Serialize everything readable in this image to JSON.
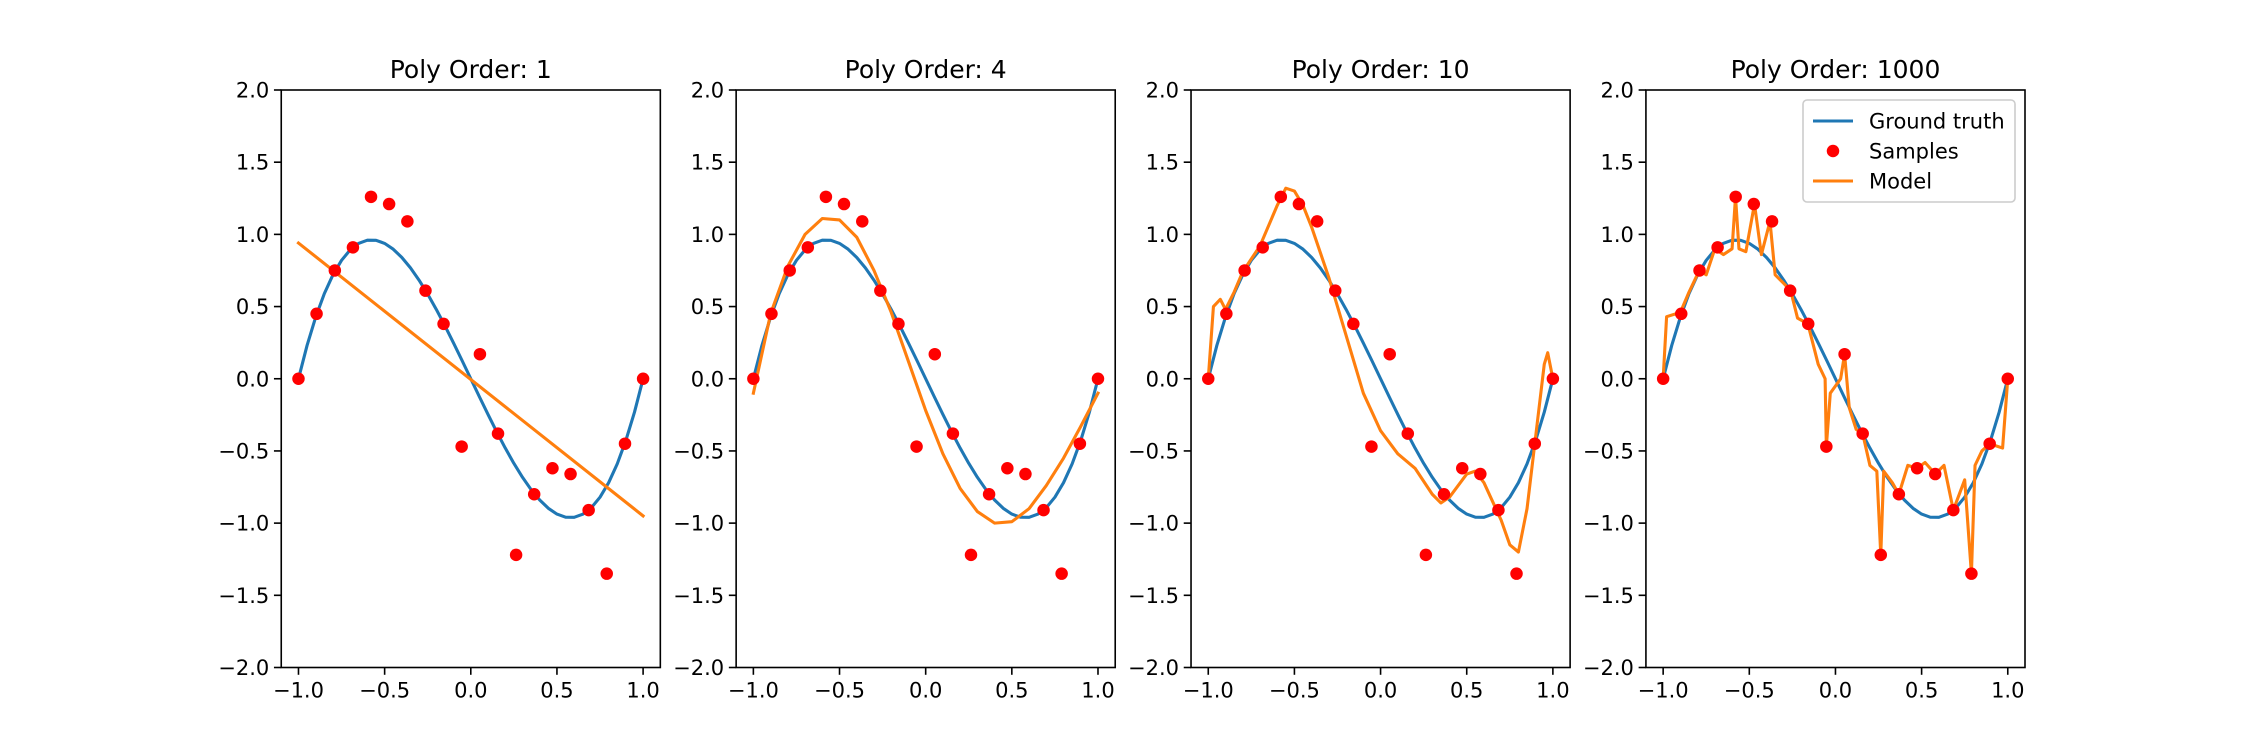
{
  "chart_data": [
    {
      "type": "line",
      "title": "Poly Order: 1",
      "xlim": [
        -1.1,
        1.1
      ],
      "ylim": [
        -2,
        2
      ],
      "xticks": [
        {
          "value": -1,
          "label": "−1.0"
        },
        {
          "value": -0.5,
          "label": "−0.5"
        },
        {
          "value": 0,
          "label": "0.0"
        },
        {
          "value": 0.5,
          "label": "0.5"
        },
        {
          "value": 1,
          "label": "1.0"
        }
      ],
      "yticks": [
        {
          "value": -2,
          "label": "−2.0"
        },
        {
          "value": -1.5,
          "label": "−1.5"
        },
        {
          "value": -1,
          "label": "−1.0"
        },
        {
          "value": -0.5,
          "label": "−0.5"
        },
        {
          "value": 0,
          "label": "0.0"
        },
        {
          "value": 0.5,
          "label": "0.5"
        },
        {
          "value": 1,
          "label": "1.0"
        },
        {
          "value": 1.5,
          "label": "1.5"
        },
        {
          "value": 2,
          "label": "2.0"
        }
      ],
      "series": [
        {
          "name": "Ground truth",
          "type": "line",
          "color": "#1f77b4",
          "x": [
            -1,
            -0.95,
            -0.9,
            -0.85,
            -0.8,
            -0.75,
            -0.7,
            -0.65,
            -0.6,
            -0.55,
            -0.5,
            -0.45,
            -0.4,
            -0.35,
            -0.3,
            -0.25,
            -0.2,
            -0.15,
            -0.1,
            -0.05,
            0,
            0.05,
            0.1,
            0.15,
            0.2,
            0.25,
            0.3,
            0.35,
            0.4,
            0.45,
            0.5,
            0.55,
            0.6,
            0.65,
            0.7,
            0.75,
            0.8,
            0.85,
            0.9,
            0.95,
            1
          ],
          "values": [
            0,
            0.2316,
            0.4275,
            0.5897,
            0.72,
            0.8203,
            0.8925,
            0.9384,
            0.96,
            0.9591,
            0.9375,
            0.8972,
            0.84,
            0.7678,
            0.6825,
            0.5859,
            0.48,
            0.3666,
            0.2475,
            0.1247,
            0,
            -0.1247,
            -0.2475,
            -0.3666,
            -0.48,
            -0.5859,
            -0.6825,
            -0.7678,
            -0.84,
            -0.8972,
            -0.9375,
            -0.9591,
            -0.96,
            -0.9384,
            -0.8925,
            -0.8203,
            -0.72,
            -0.5897,
            -0.4275,
            -0.2316,
            0
          ]
        },
        {
          "name": "Samples",
          "type": "scatter",
          "color": "#ff0000",
          "x": [
            -1,
            -0.895,
            -0.789,
            -0.684,
            -0.579,
            -0.474,
            -0.368,
            -0.263,
            -0.158,
            -0.053,
            0.053,
            0.158,
            0.263,
            0.368,
            0.474,
            0.579,
            0.684,
            0.789,
            0.895,
            1
          ],
          "values": [
            0,
            0.45,
            0.75,
            0.91,
            1.26,
            1.21,
            1.09,
            0.61,
            0.38,
            -0.47,
            0.17,
            -0.38,
            -1.22,
            -0.8,
            -0.62,
            -0.66,
            -0.91,
            -1.35,
            -0.45,
            0
          ]
        },
        {
          "name": "Model",
          "type": "line",
          "color": "#ff7f0e",
          "x": [
            -1,
            1
          ],
          "values": [
            0.94,
            -0.95
          ]
        }
      ]
    },
    {
      "type": "line",
      "title": "Poly Order: 4",
      "xlim": [
        -1.1,
        1.1
      ],
      "ylim": [
        -2,
        2
      ],
      "xticks": [
        {
          "value": -1,
          "label": "−1.0"
        },
        {
          "value": -0.5,
          "label": "−0.5"
        },
        {
          "value": 0,
          "label": "0.0"
        },
        {
          "value": 0.5,
          "label": "0.5"
        },
        {
          "value": 1,
          "label": "1.0"
        }
      ],
      "yticks": [
        {
          "value": -2,
          "label": "−2.0"
        },
        {
          "value": -1.5,
          "label": "−1.5"
        },
        {
          "value": -1,
          "label": "−1.0"
        },
        {
          "value": -0.5,
          "label": "−0.5"
        },
        {
          "value": 0,
          "label": "0.0"
        },
        {
          "value": 0.5,
          "label": "0.5"
        },
        {
          "value": 1,
          "label": "1.0"
        },
        {
          "value": 1.5,
          "label": "1.5"
        },
        {
          "value": 2,
          "label": "2.0"
        }
      ],
      "series": [
        {
          "name": "Ground truth",
          "type": "line",
          "color": "#1f77b4",
          "x": [
            -1,
            -0.95,
            -0.9,
            -0.85,
            -0.8,
            -0.75,
            -0.7,
            -0.65,
            -0.6,
            -0.55,
            -0.5,
            -0.45,
            -0.4,
            -0.35,
            -0.3,
            -0.25,
            -0.2,
            -0.15,
            -0.1,
            -0.05,
            0,
            0.05,
            0.1,
            0.15,
            0.2,
            0.25,
            0.3,
            0.35,
            0.4,
            0.45,
            0.5,
            0.55,
            0.6,
            0.65,
            0.7,
            0.75,
            0.8,
            0.85,
            0.9,
            0.95,
            1
          ],
          "values": [
            0,
            0.2316,
            0.4275,
            0.5897,
            0.72,
            0.8203,
            0.8925,
            0.9384,
            0.96,
            0.9591,
            0.9375,
            0.8972,
            0.84,
            0.7678,
            0.6825,
            0.5859,
            0.48,
            0.3666,
            0.2475,
            0.1247,
            0,
            -0.1247,
            -0.2475,
            -0.3666,
            -0.48,
            -0.5859,
            -0.6825,
            -0.7678,
            -0.84,
            -0.8972,
            -0.9375,
            -0.9591,
            -0.96,
            -0.9384,
            -0.8925,
            -0.8203,
            -0.72,
            -0.5897,
            -0.4275,
            -0.2316,
            0
          ]
        },
        {
          "name": "Samples",
          "type": "scatter",
          "color": "#ff0000",
          "x": [
            -1,
            -0.895,
            -0.789,
            -0.684,
            -0.579,
            -0.474,
            -0.368,
            -0.263,
            -0.158,
            -0.053,
            0.053,
            0.158,
            0.263,
            0.368,
            0.474,
            0.579,
            0.684,
            0.789,
            0.895,
            1
          ],
          "values": [
            0,
            0.45,
            0.75,
            0.91,
            1.26,
            1.21,
            1.09,
            0.61,
            0.38,
            -0.47,
            0.17,
            -0.38,
            -1.22,
            -0.8,
            -0.62,
            -0.66,
            -0.91,
            -1.35,
            -0.45,
            0
          ]
        },
        {
          "name": "Model",
          "type": "line",
          "color": "#ff7f0e",
          "x": [
            -1,
            -0.9,
            -0.8,
            -0.7,
            -0.6,
            -0.5,
            -0.4,
            -0.3,
            -0.2,
            -0.1,
            0,
            0.1,
            0.2,
            0.3,
            0.4,
            0.5,
            0.6,
            0.7,
            0.8,
            0.9,
            1
          ],
          "values": [
            -0.1,
            0.45,
            0.78,
            1.0,
            1.11,
            1.1,
            0.98,
            0.75,
            0.46,
            0.12,
            -0.22,
            -0.52,
            -0.76,
            -0.92,
            -1.0,
            -0.99,
            -0.9,
            -0.74,
            -0.55,
            -0.33,
            -0.1
          ]
        }
      ]
    },
    {
      "type": "line",
      "title": "Poly Order: 10",
      "xlim": [
        -1.1,
        1.1
      ],
      "ylim": [
        -2,
        2
      ],
      "xticks": [
        {
          "value": -1,
          "label": "−1.0"
        },
        {
          "value": -0.5,
          "label": "−0.5"
        },
        {
          "value": 0,
          "label": "0.0"
        },
        {
          "value": 0.5,
          "label": "0.5"
        },
        {
          "value": 1,
          "label": "1.0"
        }
      ],
      "yticks": [
        {
          "value": -2,
          "label": "−2.0"
        },
        {
          "value": -1.5,
          "label": "−1.5"
        },
        {
          "value": -1,
          "label": "−1.0"
        },
        {
          "value": -0.5,
          "label": "−0.5"
        },
        {
          "value": 0,
          "label": "0.0"
        },
        {
          "value": 0.5,
          "label": "0.5"
        },
        {
          "value": 1,
          "label": "1.0"
        },
        {
          "value": 1.5,
          "label": "1.5"
        },
        {
          "value": 2,
          "label": "2.0"
        }
      ],
      "series": [
        {
          "name": "Ground truth",
          "type": "line",
          "color": "#1f77b4",
          "x": [
            -1,
            -0.95,
            -0.9,
            -0.85,
            -0.8,
            -0.75,
            -0.7,
            -0.65,
            -0.6,
            -0.55,
            -0.5,
            -0.45,
            -0.4,
            -0.35,
            -0.3,
            -0.25,
            -0.2,
            -0.15,
            -0.1,
            -0.05,
            0,
            0.05,
            0.1,
            0.15,
            0.2,
            0.25,
            0.3,
            0.35,
            0.4,
            0.45,
            0.5,
            0.55,
            0.6,
            0.65,
            0.7,
            0.75,
            0.8,
            0.85,
            0.9,
            0.95,
            1
          ],
          "values": [
            0,
            0.2316,
            0.4275,
            0.5897,
            0.72,
            0.8203,
            0.8925,
            0.9384,
            0.96,
            0.9591,
            0.9375,
            0.8972,
            0.84,
            0.7678,
            0.6825,
            0.5859,
            0.48,
            0.3666,
            0.2475,
            0.1247,
            0,
            -0.1247,
            -0.2475,
            -0.3666,
            -0.48,
            -0.5859,
            -0.6825,
            -0.7678,
            -0.84,
            -0.8972,
            -0.9375,
            -0.9591,
            -0.96,
            -0.9384,
            -0.8925,
            -0.8203,
            -0.72,
            -0.5897,
            -0.4275,
            -0.2316,
            0
          ]
        },
        {
          "name": "Samples",
          "type": "scatter",
          "color": "#ff0000",
          "x": [
            -1,
            -0.895,
            -0.789,
            -0.684,
            -0.579,
            -0.474,
            -0.368,
            -0.263,
            -0.158,
            -0.053,
            0.053,
            0.158,
            0.263,
            0.368,
            0.474,
            0.579,
            0.684,
            0.789,
            0.895,
            1
          ],
          "values": [
            0,
            0.45,
            0.75,
            0.91,
            1.26,
            1.21,
            1.09,
            0.61,
            0.38,
            -0.47,
            0.17,
            -0.38,
            -1.22,
            -0.8,
            -0.62,
            -0.66,
            -0.91,
            -1.35,
            -0.45,
            0
          ]
        },
        {
          "name": "Model",
          "type": "line",
          "color": "#ff7f0e",
          "x": [
            -1,
            -0.97,
            -0.93,
            -0.9,
            -0.85,
            -0.8,
            -0.7,
            -0.6,
            -0.55,
            -0.5,
            -0.45,
            -0.4,
            -0.3,
            -0.2,
            -0.1,
            0,
            0.1,
            0.2,
            0.3,
            0.35,
            0.4,
            0.5,
            0.55,
            0.6,
            0.7,
            0.75,
            0.8,
            0.85,
            0.9,
            0.95,
            0.97,
            1
          ],
          "values": [
            0,
            0.5,
            0.55,
            0.48,
            0.6,
            0.74,
            0.92,
            1.2,
            1.32,
            1.3,
            1.2,
            1.05,
            0.7,
            0.3,
            -0.1,
            -0.36,
            -0.52,
            -0.62,
            -0.8,
            -0.86,
            -0.82,
            -0.66,
            -0.64,
            -0.72,
            -0.98,
            -1.15,
            -1.2,
            -0.9,
            -0.4,
            0.1,
            0.18,
            0
          ]
        }
      ]
    },
    {
      "type": "line",
      "title": "Poly Order: 1000",
      "legend": "upper right",
      "xlim": [
        -1.1,
        1.1
      ],
      "ylim": [
        -2,
        2
      ],
      "xticks": [
        {
          "value": -1,
          "label": "−1.0"
        },
        {
          "value": -0.5,
          "label": "−0.5"
        },
        {
          "value": 0,
          "label": "0.0"
        },
        {
          "value": 0.5,
          "label": "0.5"
        },
        {
          "value": 1,
          "label": "1.0"
        }
      ],
      "yticks": [
        {
          "value": -2,
          "label": "−2.0"
        },
        {
          "value": -1.5,
          "label": "−1.5"
        },
        {
          "value": -1,
          "label": "−1.0"
        },
        {
          "value": -0.5,
          "label": "−0.5"
        },
        {
          "value": 0,
          "label": "0.0"
        },
        {
          "value": 0.5,
          "label": "0.5"
        },
        {
          "value": 1,
          "label": "1.0"
        },
        {
          "value": 1.5,
          "label": "1.5"
        },
        {
          "value": 2,
          "label": "2.0"
        }
      ],
      "series": [
        {
          "name": "Ground truth",
          "type": "line",
          "color": "#1f77b4",
          "x": [
            -1,
            -0.95,
            -0.9,
            -0.85,
            -0.8,
            -0.75,
            -0.7,
            -0.65,
            -0.6,
            -0.55,
            -0.5,
            -0.45,
            -0.4,
            -0.35,
            -0.3,
            -0.25,
            -0.2,
            -0.15,
            -0.1,
            -0.05,
            0,
            0.05,
            0.1,
            0.15,
            0.2,
            0.25,
            0.3,
            0.35,
            0.4,
            0.45,
            0.5,
            0.55,
            0.6,
            0.65,
            0.7,
            0.75,
            0.8,
            0.85,
            0.9,
            0.95,
            1
          ],
          "values": [
            0,
            0.2316,
            0.4275,
            0.5897,
            0.72,
            0.8203,
            0.8925,
            0.9384,
            0.96,
            0.9591,
            0.9375,
            0.8972,
            0.84,
            0.7678,
            0.6825,
            0.5859,
            0.48,
            0.3666,
            0.2475,
            0.1247,
            0,
            -0.1247,
            -0.2475,
            -0.3666,
            -0.48,
            -0.5859,
            -0.6825,
            -0.7678,
            -0.84,
            -0.8972,
            -0.9375,
            -0.9591,
            -0.96,
            -0.9384,
            -0.8925,
            -0.8203,
            -0.72,
            -0.5897,
            -0.4275,
            -0.2316,
            0
          ]
        },
        {
          "name": "Samples",
          "type": "scatter",
          "color": "#ff0000",
          "x": [
            -1,
            -0.895,
            -0.789,
            -0.684,
            -0.579,
            -0.474,
            -0.368,
            -0.263,
            -0.158,
            -0.053,
            0.053,
            0.158,
            0.263,
            0.368,
            0.474,
            0.579,
            0.684,
            0.789,
            0.895,
            1
          ],
          "values": [
            0,
            0.45,
            0.75,
            0.91,
            1.26,
            1.21,
            1.09,
            0.61,
            0.38,
            -0.47,
            0.17,
            -0.38,
            -1.22,
            -0.8,
            -0.62,
            -0.66,
            -0.91,
            -1.35,
            -0.45,
            0
          ]
        },
        {
          "name": "Model",
          "type": "line",
          "color": "#ff7f0e",
          "x": [
            -1,
            -0.98,
            -0.9,
            -0.85,
            -0.79,
            -0.75,
            -0.7,
            -0.65,
            -0.6,
            -0.58,
            -0.56,
            -0.52,
            -0.47,
            -0.43,
            -0.38,
            -0.35,
            -0.3,
            -0.26,
            -0.22,
            -0.16,
            -0.1,
            -0.06,
            -0.053,
            -0.03,
            0,
            0.03,
            0.053,
            0.08,
            0.12,
            0.158,
            0.2,
            0.24,
            0.263,
            0.28,
            0.33,
            0.368,
            0.42,
            0.474,
            0.52,
            0.579,
            0.63,
            0.684,
            0.75,
            0.789,
            0.81,
            0.85,
            0.895,
            0.97,
            1
          ],
          "values": [
            0,
            0.43,
            0.46,
            0.6,
            0.75,
            0.72,
            0.9,
            0.86,
            0.9,
            1.26,
            0.9,
            0.88,
            1.21,
            0.86,
            1.09,
            0.72,
            0.66,
            0.61,
            0.42,
            0.38,
            0.1,
            0,
            -0.47,
            -0.1,
            -0.05,
            0,
            0.17,
            -0.2,
            -0.35,
            -0.38,
            -0.6,
            -0.64,
            -1.22,
            -0.64,
            -0.72,
            -0.8,
            -0.6,
            -0.62,
            -0.58,
            -0.66,
            -0.6,
            -0.91,
            -0.7,
            -1.35,
            -0.6,
            -0.5,
            -0.45,
            -0.48,
            0
          ]
        }
      ]
    }
  ]
}
